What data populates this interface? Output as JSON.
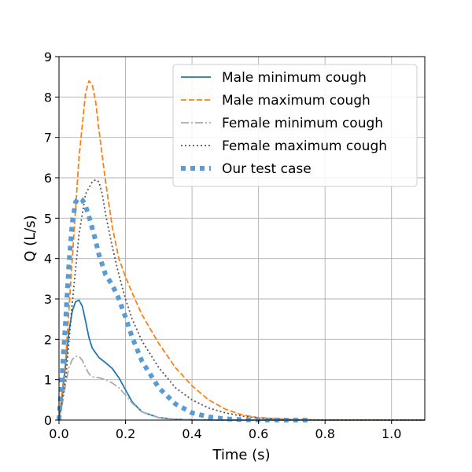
{
  "chart_data": {
    "type": "line",
    "xlabel": "Time (s)",
    "ylabel": "Q (L/s)",
    "xlim": [
      0,
      1.1
    ],
    "ylim": [
      0,
      9
    ],
    "grid": true,
    "legend_position": "top-right",
    "x_ticks": [
      "0.0",
      "0.2",
      "0.4",
      "0.6",
      "0.8",
      "1.0"
    ],
    "y_ticks": [
      "0",
      "1",
      "2",
      "3",
      "4",
      "5",
      "6",
      "7",
      "8",
      "9"
    ],
    "series": [
      {
        "name": "Male minimum cough",
        "color": "#1f77b4",
        "style": "solid",
        "x": [
          0,
          0.01,
          0.02,
          0.03,
          0.04,
          0.05,
          0.06,
          0.07,
          0.08,
          0.09,
          0.1,
          0.12,
          0.14,
          0.16,
          0.18,
          0.2,
          0.22,
          0.25,
          0.3,
          0.35,
          0.4,
          0.5,
          0.6,
          1.1
        ],
        "y": [
          0,
          0.6,
          1.4,
          2.2,
          2.7,
          2.93,
          2.97,
          2.82,
          2.45,
          2.05,
          1.78,
          1.55,
          1.42,
          1.28,
          1.05,
          0.75,
          0.45,
          0.2,
          0.06,
          0.02,
          0.005,
          0,
          0,
          0
        ]
      },
      {
        "name": "Male maximum cough",
        "color": "#ff7f0e",
        "style": "dashed",
        "x": [
          0,
          0.02,
          0.04,
          0.06,
          0.08,
          0.09,
          0.1,
          0.11,
          0.12,
          0.14,
          0.16,
          0.18,
          0.2,
          0.22,
          0.25,
          0.3,
          0.35,
          0.4,
          0.45,
          0.5,
          0.55,
          0.6,
          0.7,
          0.8,
          1.1
        ],
        "y": [
          0,
          1.5,
          4.0,
          6.5,
          8.1,
          8.4,
          8.3,
          7.9,
          7.2,
          5.9,
          4.8,
          4.0,
          3.55,
          3.15,
          2.6,
          1.9,
          1.3,
          0.85,
          0.5,
          0.27,
          0.13,
          0.06,
          0.015,
          0,
          0
        ]
      },
      {
        "name": "Female minimum cough",
        "color": "#a9a9a9",
        "style": "dashdot",
        "x": [
          0,
          0.01,
          0.02,
          0.03,
          0.04,
          0.05,
          0.06,
          0.07,
          0.08,
          0.09,
          0.1,
          0.12,
          0.14,
          0.16,
          0.18,
          0.2,
          0.22,
          0.25,
          0.3,
          0.35,
          0.4,
          0.5,
          1.1
        ],
        "y": [
          0,
          0.4,
          0.9,
          1.3,
          1.5,
          1.58,
          1.58,
          1.48,
          1.3,
          1.15,
          1.07,
          1.05,
          1.0,
          0.92,
          0.8,
          0.62,
          0.42,
          0.2,
          0.06,
          0.02,
          0.005,
          0,
          0
        ]
      },
      {
        "name": "Female maximum cough",
        "color": "#555555",
        "style": "dotted",
        "x": [
          0,
          0.02,
          0.04,
          0.06,
          0.08,
          0.1,
          0.11,
          0.12,
          0.13,
          0.14,
          0.16,
          0.18,
          0.2,
          0.22,
          0.25,
          0.3,
          0.35,
          0.4,
          0.45,
          0.5,
          0.55,
          0.6,
          0.65,
          0.7,
          0.8,
          1.1
        ],
        "y": [
          0,
          1.0,
          2.9,
          4.6,
          5.6,
          5.9,
          5.95,
          5.9,
          5.6,
          5.1,
          4.3,
          3.6,
          3.0,
          2.5,
          1.95,
          1.3,
          0.8,
          0.5,
          0.3,
          0.18,
          0.1,
          0.05,
          0.025,
          0.01,
          0.003,
          0
        ]
      },
      {
        "name": "Our test case",
        "color": "#5b9bd5",
        "style": "thick-dotted",
        "x": [
          0,
          0.01,
          0.02,
          0.03,
          0.04,
          0.05,
          0.06,
          0.07,
          0.08,
          0.09,
          0.1,
          0.11,
          0.12,
          0.13,
          0.14,
          0.16,
          0.18,
          0.2,
          0.22,
          0.25,
          0.3,
          0.35,
          0.4,
          0.45,
          0.5,
          0.55,
          0.6,
          0.65,
          0.7,
          0.75
        ],
        "y": [
          0,
          1.2,
          2.5,
          3.9,
          4.9,
          5.4,
          5.5,
          5.45,
          5.3,
          5.05,
          4.75,
          4.45,
          4.1,
          3.85,
          3.6,
          3.35,
          3.0,
          2.55,
          2.05,
          1.45,
          0.8,
          0.4,
          0.18,
          0.08,
          0.03,
          0.01,
          0.004,
          0.001,
          0.0005,
          0
        ]
      }
    ]
  }
}
